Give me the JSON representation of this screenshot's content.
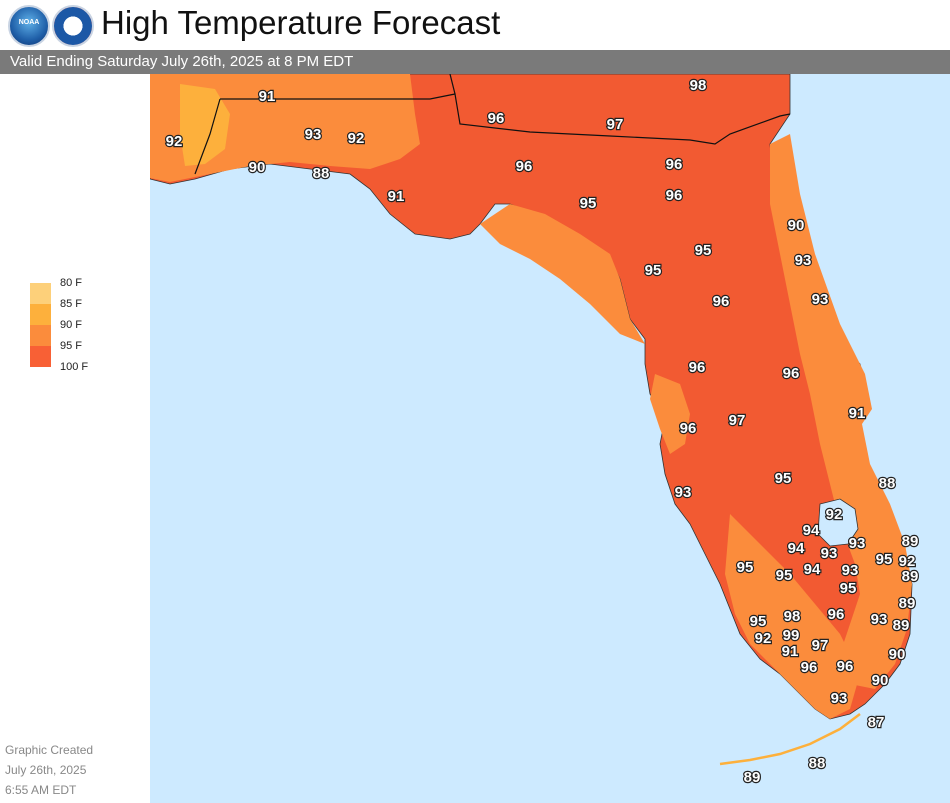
{
  "header": {
    "title": "High Temperature Forecast",
    "logo_noaa_text": "NOAA",
    "valid_text": "Valid Ending Saturday July 26th, 2025 at 8 PM EDT"
  },
  "legend": {
    "items": [
      {
        "label": "80 F",
        "color": "#fdd07a"
      },
      {
        "label": "85 F",
        "color": "#fdb03c"
      },
      {
        "label": "90 F",
        "color": "#fb8c3c"
      },
      {
        "label": "95 F",
        "color": "#f86035"
      },
      {
        "label": "100 F",
        "color": ""
      }
    ]
  },
  "created": {
    "line1": "Graphic Created",
    "line2": "July 26th, 2025",
    "line3": "6:55 AM EDT"
  },
  "colors": {
    "water": "#cdeaff",
    "land_90": "#fb8c3c",
    "land_95": "#f25a32",
    "land_85": "#fdb03c",
    "header_bar": "#7a7a7a"
  },
  "map_labels": [
    {
      "value": "98"
    },
    {
      "value": "91"
    },
    {
      "value": "96"
    },
    {
      "value": "97"
    },
    {
      "value": "92"
    },
    {
      "value": "93"
    },
    {
      "value": "92"
    },
    {
      "value": "90"
    },
    {
      "value": "88"
    },
    {
      "value": "96"
    },
    {
      "value": "96"
    },
    {
      "value": "91"
    },
    {
      "value": "95"
    },
    {
      "value": "96"
    },
    {
      "value": "90"
    },
    {
      "value": "95"
    },
    {
      "value": "93"
    },
    {
      "value": "95"
    },
    {
      "value": "96"
    },
    {
      "value": "93"
    },
    {
      "value": "96"
    },
    {
      "value": "96"
    },
    {
      "value": "91"
    },
    {
      "value": "96"
    },
    {
      "value": "97"
    },
    {
      "value": "88"
    },
    {
      "value": "95"
    },
    {
      "value": "93"
    },
    {
      "value": "92"
    },
    {
      "value": "94"
    },
    {
      "value": "93"
    },
    {
      "value": "89"
    },
    {
      "value": "94"
    },
    {
      "value": "93"
    },
    {
      "value": "95"
    },
    {
      "value": "92"
    },
    {
      "value": "95"
    },
    {
      "value": "95"
    },
    {
      "value": "94"
    },
    {
      "value": "93"
    },
    {
      "value": "89"
    },
    {
      "value": "95"
    },
    {
      "value": "89"
    },
    {
      "value": "95"
    },
    {
      "value": "98"
    },
    {
      "value": "96"
    },
    {
      "value": "93"
    },
    {
      "value": "89"
    },
    {
      "value": "92"
    },
    {
      "value": "99"
    },
    {
      "value": "97"
    },
    {
      "value": "91"
    },
    {
      "value": "96"
    },
    {
      "value": "96"
    },
    {
      "value": "90"
    },
    {
      "value": "90"
    },
    {
      "value": "93"
    },
    {
      "value": "87"
    },
    {
      "value": "89"
    },
    {
      "value": "88"
    }
  ]
}
